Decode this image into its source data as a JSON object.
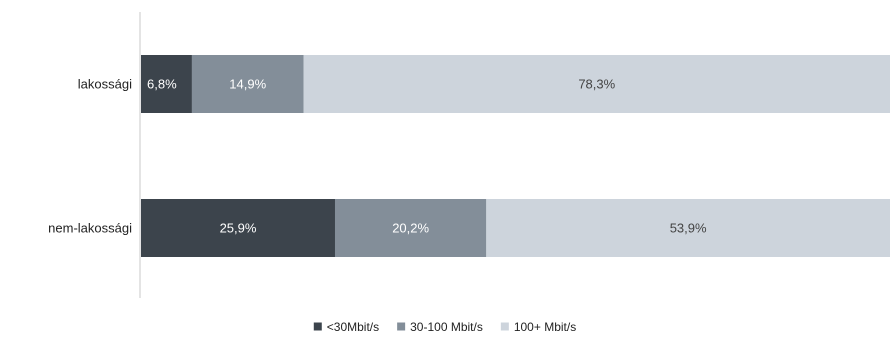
{
  "chart_data": {
    "type": "bar",
    "orientation": "horizontal",
    "stacked": true,
    "categories": [
      "lakossági",
      "nem-lakossági"
    ],
    "series": [
      {
        "name": "<30Mbit/s",
        "values": [
          6.8,
          25.9
        ],
        "labels": [
          "6,8%",
          "25,9%"
        ],
        "color": "#3c444c",
        "label_color": "#ffffff"
      },
      {
        "name": "30-100 Mbit/s",
        "values": [
          14.9,
          20.2
        ],
        "labels": [
          "14,9%",
          "20,2%"
        ],
        "color": "#838e99",
        "label_color": "#ffffff"
      },
      {
        "name": "100+ Mbit/s",
        "values": [
          78.3,
          53.9
        ],
        "labels": [
          "78,3%",
          "53,9%"
        ],
        "color": "#cdd4dc",
        "label_color": "#444444"
      }
    ],
    "xlim": [
      0,
      100
    ],
    "grid": false,
    "legend": "bottom",
    "title": "",
    "xlabel": "",
    "ylabel": ""
  }
}
